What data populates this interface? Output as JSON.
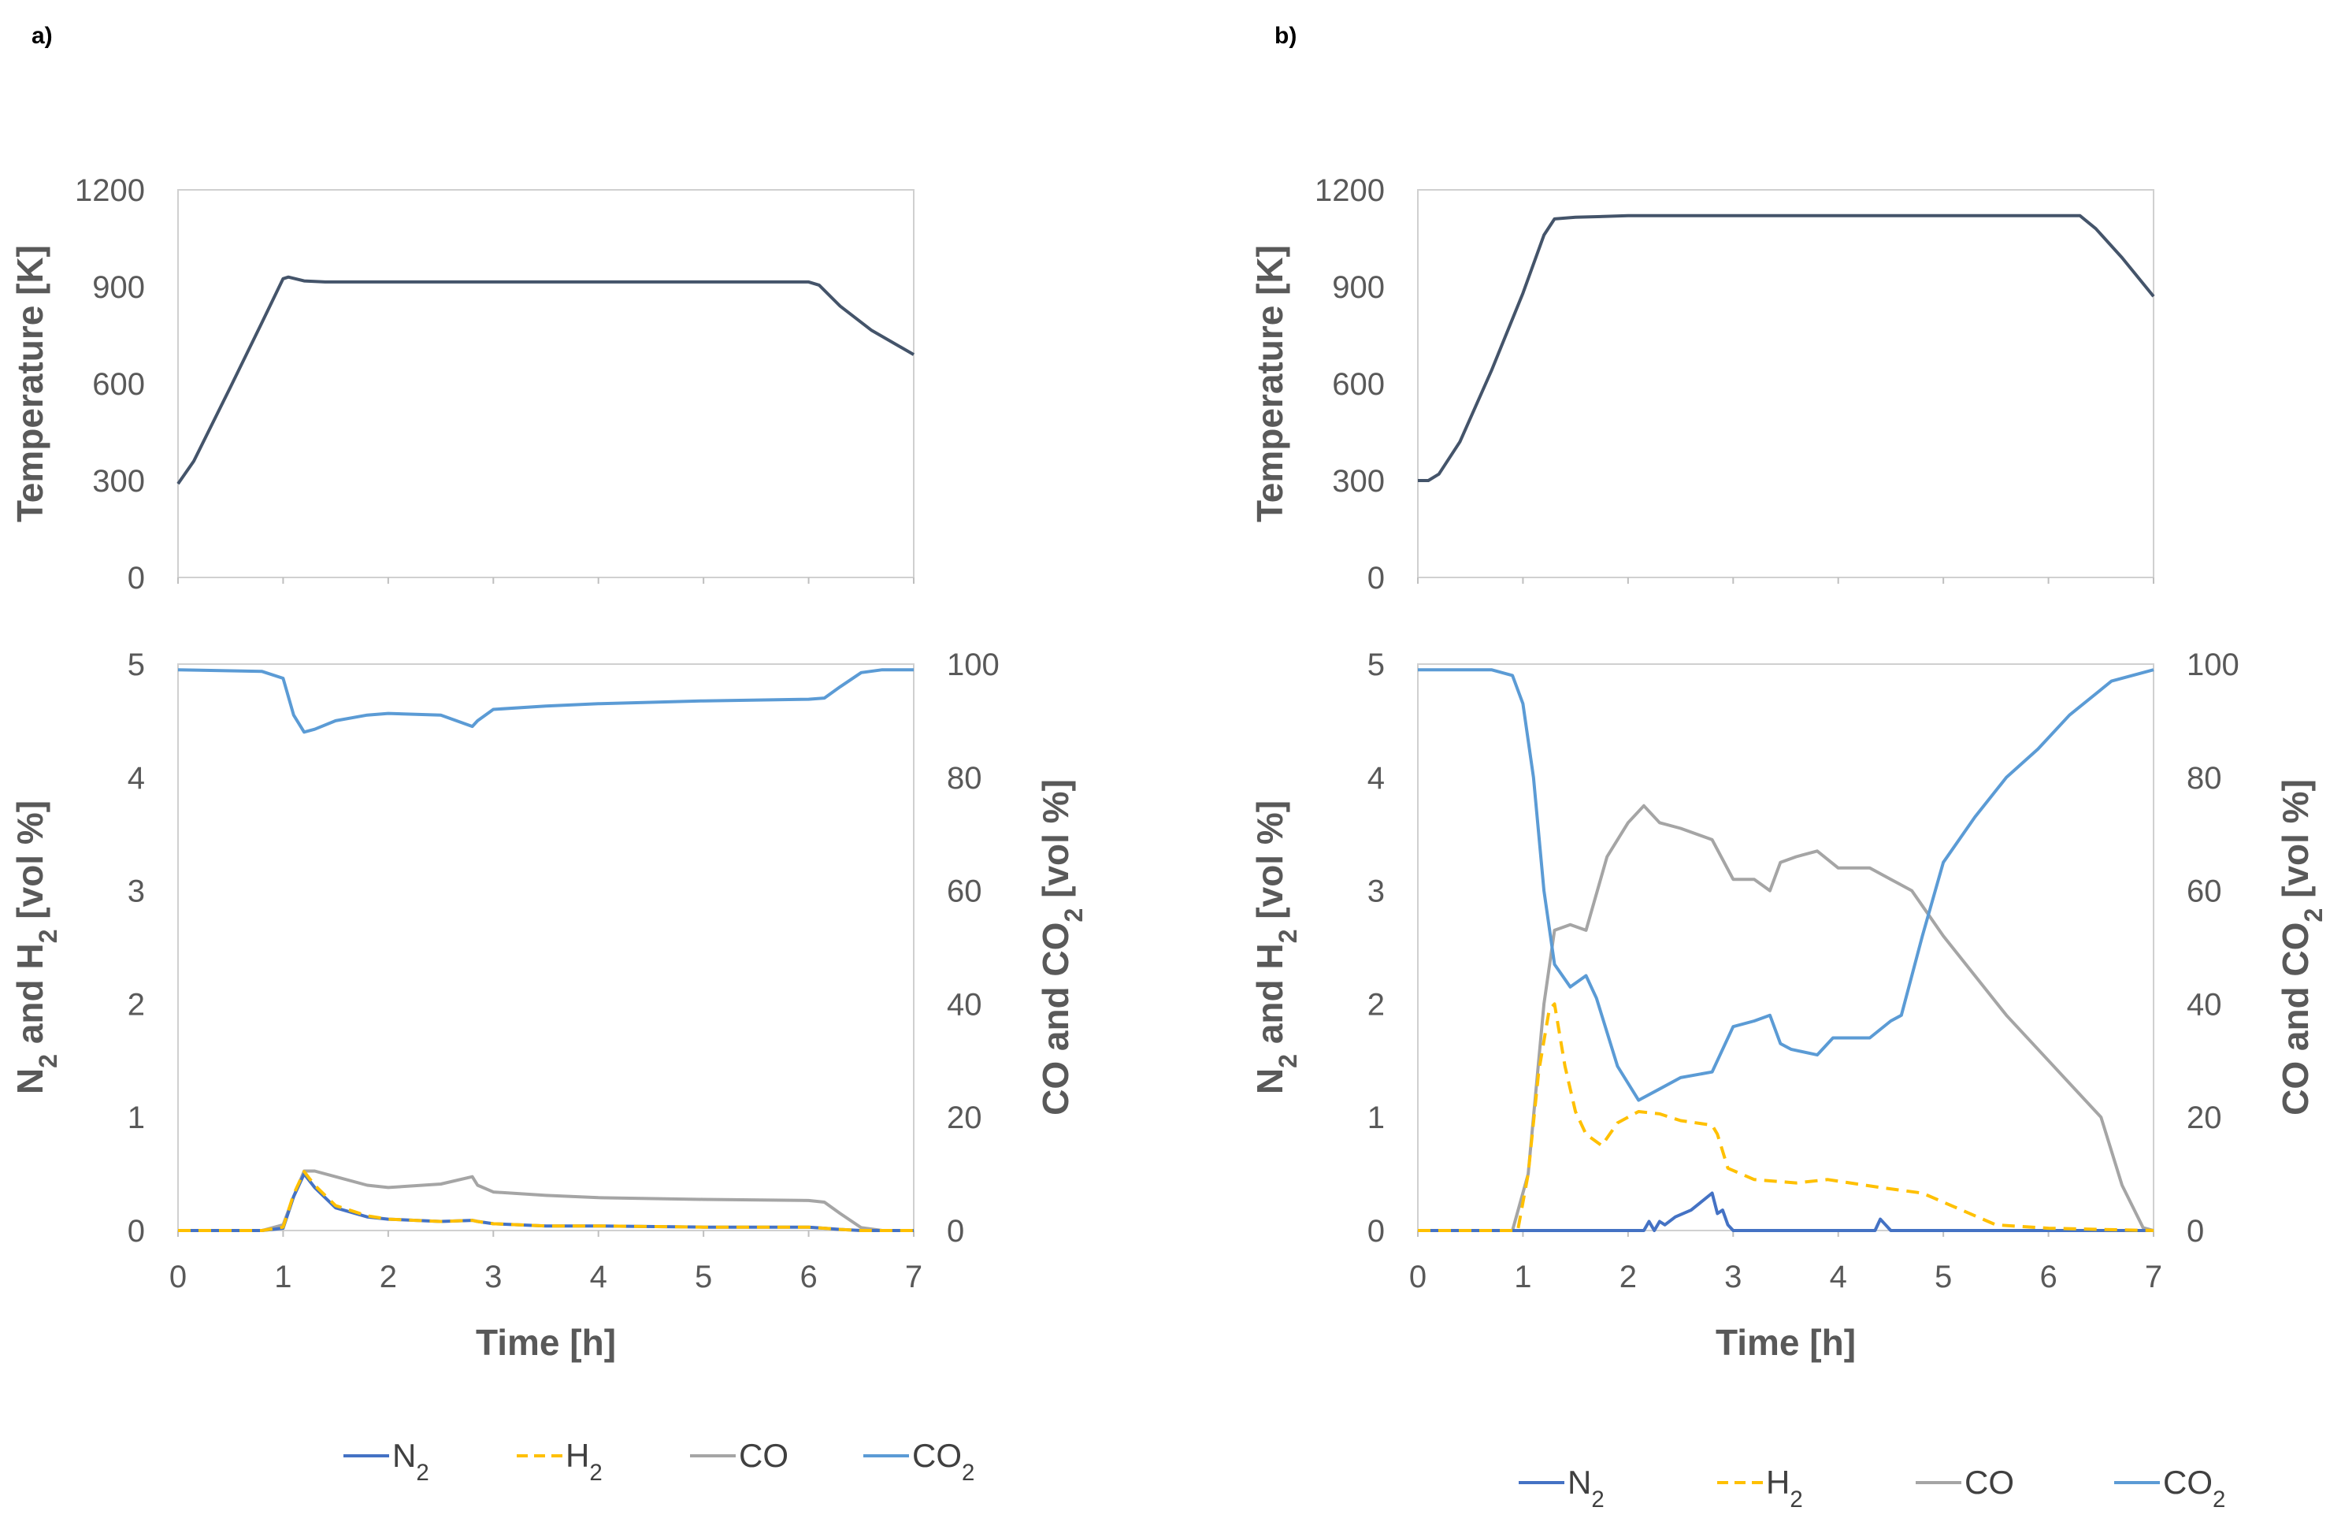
{
  "colors": {
    "temperature": "#44546a",
    "N2": "#4472c4",
    "H2": "#ffc000",
    "CO": "#a5a5a5",
    "CO2": "#5b9bd5"
  },
  "legend": {
    "N2": "N₂",
    "H2": "H₂",
    "CO": "CO",
    "CO2": "CO₂"
  },
  "chart_data": [
    {
      "type": "line",
      "panel": "a)",
      "temperature": {
        "ylabel": "Temperature [K]",
        "ylim": [
          0,
          1200
        ],
        "yticks": [
          "0",
          "300",
          "600",
          "900",
          "1200"
        ],
        "xlim": [
          0,
          7
        ],
        "series": {
          "x": [
            0,
            0.15,
            0.5,
            0.8,
            1.0,
            1.05,
            1.2,
            1.4,
            2,
            3,
            4,
            5,
            6,
            6.1,
            6.3,
            6.6,
            7
          ],
          "y": [
            290,
            360,
            590,
            790,
            925,
            930,
            918,
            915,
            915,
            915,
            915,
            915,
            915,
            905,
            840,
            765,
            690
          ]
        }
      },
      "gas": {
        "xlabel": "Time [h]",
        "ylabel_left": "N₂ and H₂ [vol %]",
        "ylabel_right": "CO and CO₂ [vol %]",
        "xlim": [
          0,
          7
        ],
        "xticks": [
          "0",
          "1",
          "2",
          "3",
          "4",
          "5",
          "6",
          "7"
        ],
        "ylim_left": [
          0,
          5
        ],
        "yticks_left": [
          "0",
          "1",
          "2",
          "3",
          "4",
          "5"
        ],
        "ylim_right": [
          0,
          100
        ],
        "yticks_right": [
          "0",
          "20",
          "40",
          "60",
          "80",
          "100"
        ],
        "x": [
          0,
          0.8,
          1.0,
          1.1,
          1.2,
          1.3,
          1.5,
          1.8,
          2.0,
          2.5,
          2.8,
          2.85,
          3.0,
          3.5,
          4.0,
          5.0,
          6.0,
          6.15,
          6.3,
          6.5,
          6.7,
          7.0
        ],
        "N2": [
          0,
          0,
          0.02,
          0.3,
          0.5,
          0.38,
          0.2,
          0.12,
          0.1,
          0.08,
          0.09,
          0.08,
          0.06,
          0.04,
          0.04,
          0.03,
          0.03,
          0.02,
          0.01,
          0,
          0,
          0
        ],
        "H2": [
          0,
          0,
          0.03,
          0.32,
          0.52,
          0.4,
          0.22,
          0.13,
          0.1,
          0.08,
          0.09,
          0.08,
          0.06,
          0.04,
          0.04,
          0.03,
          0.03,
          0.02,
          0.01,
          0,
          0,
          0
        ],
        "CO": [
          0,
          0,
          1,
          6,
          10.5,
          10.5,
          9.5,
          8,
          7.6,
          8.2,
          9.5,
          8,
          6.8,
          6.2,
          5.8,
          5.5,
          5.3,
          5,
          3,
          0.5,
          0,
          0
        ],
        "CO2": [
          99,
          98.7,
          97.5,
          91,
          88,
          88.5,
          90,
          91,
          91.3,
          91,
          89,
          90,
          92,
          92.6,
          93,
          93.5,
          93.8,
          94,
          96,
          98.5,
          99,
          99
        ]
      }
    },
    {
      "type": "line",
      "panel": "b)",
      "temperature": {
        "ylabel": "Temperature [K]",
        "ylim": [
          0,
          1200
        ],
        "yticks": [
          "0",
          "300",
          "600",
          "900",
          "1200"
        ],
        "xlim": [
          0,
          7
        ],
        "series": {
          "x": [
            0,
            0.1,
            0.2,
            0.4,
            0.7,
            1.0,
            1.2,
            1.3,
            1.5,
            2,
            3,
            4,
            5,
            6,
            6.3,
            6.45,
            6.7,
            7
          ],
          "y": [
            300,
            300,
            320,
            420,
            640,
            880,
            1060,
            1110,
            1115,
            1120,
            1120,
            1120,
            1120,
            1120,
            1120,
            1080,
            990,
            870
          ]
        }
      },
      "gas": {
        "xlabel": "Time [h]",
        "ylabel_left": "N₂ and H₂ [vol %]",
        "ylabel_right": "CO and CO₂ [vol %]",
        "xlim": [
          0,
          7
        ],
        "xticks": [
          "0",
          "1",
          "2",
          "3",
          "4",
          "5",
          "6",
          "7"
        ],
        "ylim_left": [
          0,
          5
        ],
        "yticks_left": [
          "0",
          "1",
          "2",
          "3",
          "4",
          "5"
        ],
        "ylim_right": [
          0,
          100
        ],
        "yticks_right": [
          "0",
          "20",
          "40",
          "60",
          "80",
          "100"
        ],
        "N2": {
          "x": [
            0,
            2.15,
            2.2,
            2.25,
            2.3,
            2.35,
            2.45,
            2.6,
            2.8,
            2.85,
            2.9,
            2.95,
            3.0,
            4.35,
            4.4,
            4.45,
            4.5,
            7.0
          ],
          "y": [
            0,
            0,
            0.08,
            0.0,
            0.08,
            0.05,
            0.12,
            0.18,
            0.33,
            0.15,
            0.18,
            0.05,
            0,
            0,
            0.1,
            0.05,
            0,
            0
          ]
        },
        "H2": {
          "x": [
            0,
            0.95,
            1.05,
            1.15,
            1.25,
            1.3,
            1.4,
            1.5,
            1.6,
            1.75,
            1.9,
            2.1,
            2.3,
            2.5,
            2.8,
            2.85,
            2.95,
            3.2,
            3.6,
            3.9,
            4.4,
            4.8,
            5.5,
            6.0,
            6.5,
            7.0
          ],
          "y": [
            0,
            0,
            0.5,
            1.4,
            1.95,
            2.0,
            1.45,
            1.05,
            0.85,
            0.75,
            0.95,
            1.05,
            1.03,
            0.97,
            0.93,
            0.85,
            0.55,
            0.45,
            0.42,
            0.45,
            0.38,
            0.33,
            0.05,
            0.02,
            0.01,
            0
          ]
        },
        "CO": {
          "x": [
            0,
            0.9,
            1.05,
            1.2,
            1.3,
            1.45,
            1.6,
            1.8,
            2.0,
            2.15,
            2.3,
            2.5,
            2.8,
            3.0,
            3.2,
            3.35,
            3.45,
            3.6,
            3.8,
            4.0,
            4.3,
            4.5,
            4.7,
            5.0,
            5.3,
            5.6,
            6.0,
            6.2,
            6.5,
            6.7,
            6.9,
            7.0
          ],
          "y": [
            0,
            0,
            10,
            40,
            53,
            54,
            53,
            66,
            72,
            75,
            72,
            71,
            69,
            62,
            62,
            60,
            65,
            66,
            67,
            64,
            64,
            62,
            60,
            52,
            45,
            38,
            30,
            26,
            20,
            8,
            0.5,
            0
          ]
        },
        "CO2": {
          "x": [
            0,
            0.7,
            0.9,
            1.0,
            1.1,
            1.2,
            1.3,
            1.45,
            1.6,
            1.7,
            1.9,
            2.1,
            2.3,
            2.5,
            2.8,
            3.0,
            3.2,
            3.35,
            3.45,
            3.55,
            3.8,
            3.95,
            4.3,
            4.5,
            4.6,
            4.8,
            5.0,
            5.3,
            5.6,
            5.9,
            6.2,
            6.6,
            7.0
          ],
          "y": [
            99,
            99,
            98,
            93,
            80,
            60,
            47,
            43,
            45,
            41,
            29,
            23,
            25,
            27,
            28,
            36,
            37,
            38,
            33,
            32,
            31,
            34,
            34,
            37,
            38,
            52,
            65,
            73,
            80,
            85,
            91,
            97,
            99
          ]
        }
      }
    }
  ]
}
